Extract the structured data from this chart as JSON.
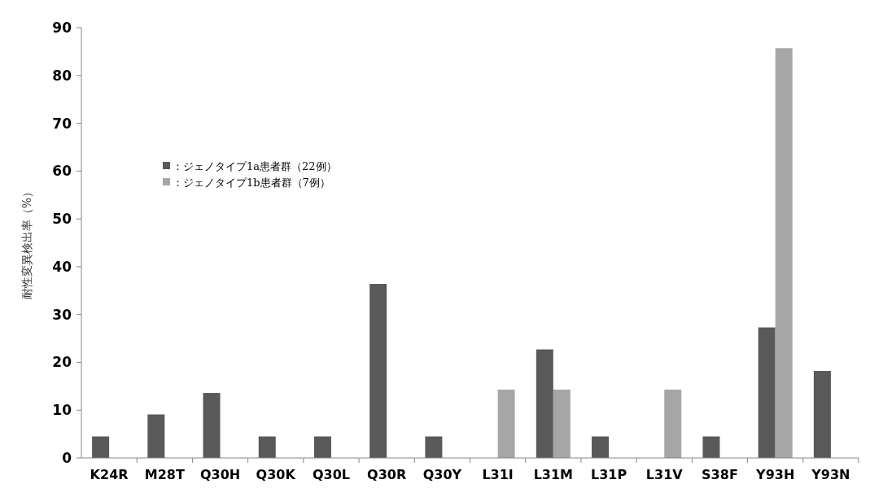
{
  "chart_data": {
    "type": "bar",
    "ylabel": "耐性変異検出率（%）",
    "categories": [
      "K24R",
      "M28T",
      "Q30H",
      "Q30K",
      "Q30L",
      "Q30R",
      "Q30Y",
      "L31I",
      "L31M",
      "L31P",
      "L31V",
      "S38F",
      "Y93H",
      "Y93N"
    ],
    "series": [
      {
        "name": "：ジェノタイプ1a患者群（22例）",
        "color": "#595959",
        "values": [
          4.5,
          9.1,
          13.6,
          4.5,
          4.5,
          36.4,
          4.5,
          0,
          22.7,
          4.5,
          0,
          4.5,
          27.3,
          18.2
        ]
      },
      {
        "name": "：ジェノタイプ1b患者群（7例）",
        "color": "#a6a6a6",
        "values": [
          0,
          0,
          0,
          0,
          0,
          0,
          0,
          14.3,
          14.3,
          0,
          14.3,
          0,
          85.7,
          0
        ]
      }
    ],
    "ylim": [
      0,
      90
    ],
    "yticks": [
      0,
      10,
      20,
      30,
      40,
      50,
      60,
      70,
      80,
      90
    ],
    "legend": "top left"
  }
}
